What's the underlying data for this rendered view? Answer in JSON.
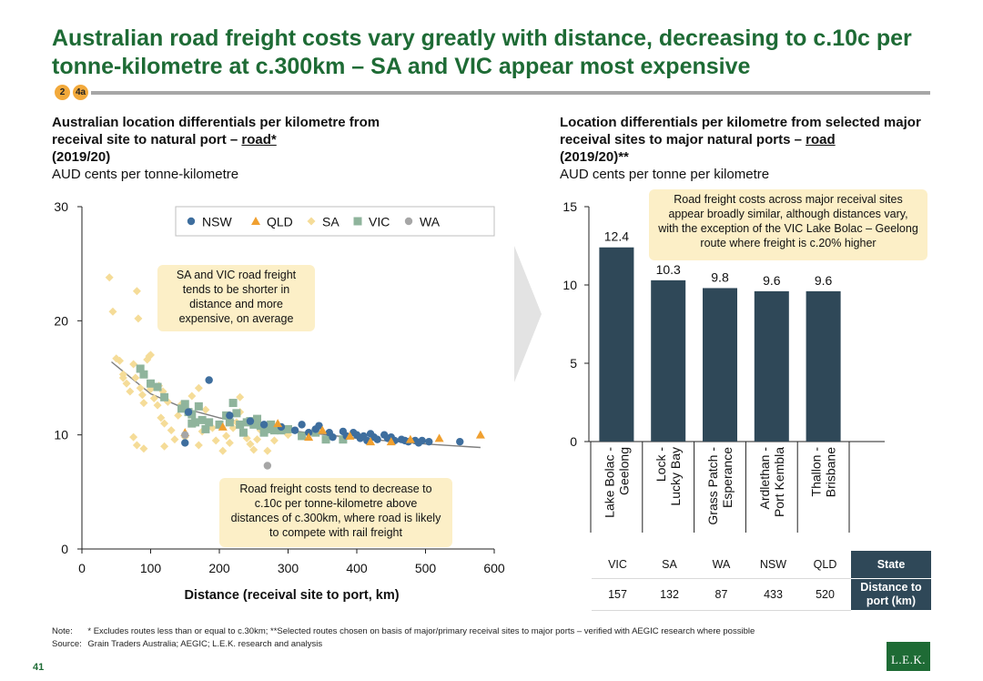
{
  "title": "Australian road freight costs vary greatly with distance, decreasing to c.10c per tonne-kilometre at c.300km – SA and VIC appear most expensive",
  "badges": [
    "2",
    "4a"
  ],
  "left": {
    "title_part1": "Australian location differentials per kilometre from receival site to natural port – ",
    "title_underlined": "road*",
    "title_year": "(2019/20)",
    "subtitle": "AUD cents per tonne-kilometre",
    "callout_top": "SA and VIC road freight tends to be shorter in distance and more expensive, on average",
    "callout_bottom": "Road freight costs tend to decrease to c.10c per tonne-kilometre above distances of c.300km, where road is likely to compete with rail freight"
  },
  "right": {
    "title_part1": "Location differentials per kilometre from selected major receival sites to major natural ports – ",
    "title_underlined": "road",
    "title_year": "(2019/20)**",
    "subtitle": "AUD cents per tonne per kilometre",
    "callout": "Road freight costs across major receival sites appear broadly similar, although distances vary, with the exception of the VIC Lake Bolac – Geelong route where freight is c.20% higher",
    "table": {
      "state_header": "State",
      "distance_header": "Distance to port (km)",
      "states": [
        "VIC",
        "SA",
        "WA",
        "NSW",
        "QLD"
      ],
      "distances": [
        "157",
        "132",
        "87",
        "433",
        "520"
      ]
    }
  },
  "chart_data": [
    {
      "type": "scatter",
      "xlabel": "Distance (receival site to port, km)",
      "ylabel": "",
      "xlim": [
        0,
        600
      ],
      "ylim": [
        0,
        30
      ],
      "xticks": [
        "0",
        "100",
        "200",
        "300",
        "400",
        "500",
        "600"
      ],
      "yticks": [
        "0",
        "10",
        "20",
        "30"
      ],
      "legend_position": "top-right",
      "trendline": [
        [
          43,
          16.4
        ],
        [
          100,
          13.6
        ],
        [
          150,
          12.3
        ],
        [
          200,
          11.5
        ],
        [
          250,
          10.9
        ],
        [
          300,
          10.4
        ],
        [
          400,
          9.7
        ],
        [
          500,
          9.2
        ],
        [
          580,
          8.9
        ]
      ],
      "series": [
        {
          "name": "NSW",
          "color": "#3e6e9e",
          "marker": "circle",
          "points": [
            [
              185,
              14.8
            ],
            [
              215,
              11.7
            ],
            [
              245,
              11.2
            ],
            [
              265,
              10.9
            ],
            [
              290,
              10.7
            ],
            [
              310,
              10.4
            ],
            [
              320,
              10.9
            ],
            [
              330,
              10.2
            ],
            [
              340,
              10.5
            ],
            [
              345,
              10.8
            ],
            [
              360,
              10.2
            ],
            [
              365,
              9.8
            ],
            [
              380,
              10.3
            ],
            [
              385,
              9.9
            ],
            [
              395,
              10.2
            ],
            [
              400,
              10.0
            ],
            [
              405,
              9.7
            ],
            [
              410,
              9.9
            ],
            [
              415,
              9.5
            ],
            [
              420,
              10.1
            ],
            [
              425,
              9.8
            ],
            [
              430,
              9.6
            ],
            [
              440,
              10.0
            ],
            [
              445,
              9.7
            ],
            [
              450,
              9.8
            ],
            [
              455,
              9.5
            ],
            [
              465,
              9.6
            ],
            [
              470,
              9.5
            ],
            [
              475,
              9.4
            ],
            [
              485,
              9.5
            ],
            [
              490,
              9.3
            ],
            [
              495,
              9.5
            ],
            [
              505,
              9.4
            ],
            [
              550,
              9.4
            ],
            [
              150,
              9.3
            ],
            [
              155,
              12.0
            ]
          ]
        },
        {
          "name": "QLD",
          "color": "#f0a030",
          "marker": "triangle",
          "points": [
            [
              150,
              10.2
            ],
            [
              205,
              10.7
            ],
            [
              285,
              11.0
            ],
            [
              330,
              9.8
            ],
            [
              350,
              10.4
            ],
            [
              390,
              9.9
            ],
            [
              420,
              9.4
            ],
            [
              450,
              9.4
            ],
            [
              478,
              9.6
            ],
            [
              520,
              9.7
            ],
            [
              580,
              10.0
            ]
          ]
        },
        {
          "name": "SA",
          "color": "#f5dc98",
          "marker": "diamond",
          "points": [
            [
              40,
              23.8
            ],
            [
              45,
              20.8
            ],
            [
              50,
              16.7
            ],
            [
              55,
              16.5
            ],
            [
              60,
              15.3
            ],
            [
              65,
              14.5
            ],
            [
              70,
              13.8
            ],
            [
              75,
              16.2
            ],
            [
              78,
              15.0
            ],
            [
              80,
              22.6
            ],
            [
              82,
              20.2
            ],
            [
              85,
              14.1
            ],
            [
              88,
              13.5
            ],
            [
              90,
              12.8
            ],
            [
              95,
              16.6
            ],
            [
              98,
              16.9
            ],
            [
              100,
              14.0
            ],
            [
              105,
              13.2
            ],
            [
              110,
              12.6
            ],
            [
              112,
              14.3
            ],
            [
              115,
              11.5
            ],
            [
              118,
              13.8
            ],
            [
              120,
              11.0
            ],
            [
              125,
              12.9
            ],
            [
              130,
              10.4
            ],
            [
              135,
              9.6
            ],
            [
              140,
              11.7
            ],
            [
              145,
              12.7
            ],
            [
              150,
              9.8
            ],
            [
              160,
              13.4
            ],
            [
              165,
              11.1
            ],
            [
              170,
              9.1
            ],
            [
              175,
              10.3
            ],
            [
              180,
              12.2
            ],
            [
              190,
              10.6
            ],
            [
              195,
              9.5
            ],
            [
              200,
              10.8
            ],
            [
              205,
              8.6
            ],
            [
              210,
              9.9
            ],
            [
              215,
              9.3
            ],
            [
              220,
              10.6
            ],
            [
              225,
              11.1
            ],
            [
              230,
              12.0
            ],
            [
              240,
              9.7
            ],
            [
              245,
              9.2
            ],
            [
              250,
              8.7
            ],
            [
              255,
              9.6
            ],
            [
              260,
              10.4
            ],
            [
              270,
              8.6
            ],
            [
              280,
              9.5
            ],
            [
              300,
              10.0
            ],
            [
              75,
              9.8
            ],
            [
              80,
              9.1
            ],
            [
              90,
              8.8
            ],
            [
              120,
              9.0
            ],
            [
              60,
              15.0
            ],
            [
              100,
              17.0
            ],
            [
              170,
              14.1
            ],
            [
              230,
              13.3
            ]
          ]
        },
        {
          "name": "VIC",
          "color": "#8fb49c",
          "marker": "square",
          "points": [
            [
              85,
              15.8
            ],
            [
              90,
              15.3
            ],
            [
              100,
              14.5
            ],
            [
              110,
              14.2
            ],
            [
              120,
              13.3
            ],
            [
              145,
              12.3
            ],
            [
              150,
              12.7
            ],
            [
              155,
              12.0
            ],
            [
              160,
              11.8
            ],
            [
              165,
              11.1
            ],
            [
              170,
              12.5
            ],
            [
              175,
              11.3
            ],
            [
              185,
              11.1
            ],
            [
              200,
              10.9
            ],
            [
              210,
              11.7
            ],
            [
              215,
              11.1
            ],
            [
              220,
              12.8
            ],
            [
              225,
              11.9
            ],
            [
              230,
              10.9
            ],
            [
              240,
              11.1
            ],
            [
              245,
              11.2
            ],
            [
              250,
              10.9
            ],
            [
              255,
              11.4
            ],
            [
              260,
              10.8
            ],
            [
              270,
              10.5
            ],
            [
              275,
              10.9
            ],
            [
              280,
              10.4
            ],
            [
              290,
              10.4
            ],
            [
              300,
              10.5
            ],
            [
              320,
              9.9
            ],
            [
              340,
              10.2
            ],
            [
              355,
              9.6
            ],
            [
              380,
              9.6
            ],
            [
              160,
              11.0
            ],
            [
              180,
              10.5
            ],
            [
              235,
              10.2
            ],
            [
              265,
              10.2
            ]
          ]
        },
        {
          "name": "WA",
          "color": "#a6a6a6",
          "marker": "circle",
          "points": [
            [
              150,
              10.0
            ],
            [
              270,
              7.3
            ]
          ]
        }
      ]
    },
    {
      "type": "bar",
      "title": "",
      "categories": [
        "Lake Bolac - Geelong",
        "Lock - Lucky Bay",
        "Grass Patch - Esperance",
        "Ardlethan - Port Kembla",
        "Thallon - Brisbane"
      ],
      "values": [
        12.4,
        10.3,
        9.8,
        9.6,
        9.6
      ],
      "value_labels": [
        "12.4",
        "10.3",
        "9.8",
        "9.6",
        "9.6"
      ],
      "ylim": [
        0,
        15
      ],
      "yticks": [
        "0",
        "5",
        "10",
        "15"
      ],
      "bar_color": "#2f4858"
    }
  ],
  "notes": {
    "note_label": "Note:",
    "note_text": "* Excludes routes less than or equal to c.30km; **Selected routes chosen on basis of major/primary receival sites to major ports – verified with AEGIC research where possible",
    "source_label": "Source:",
    "source_text": "Grain Traders Australia; AEGIC; L.E.K. research and analysis"
  },
  "page_number": "41",
  "logo_text": "L.E.K.",
  "colors": {
    "title_green": "#1e6b35",
    "callout_fill": "#fcefc7",
    "bar_dark": "#2f4858",
    "badge_orange": "#f2a93b"
  }
}
